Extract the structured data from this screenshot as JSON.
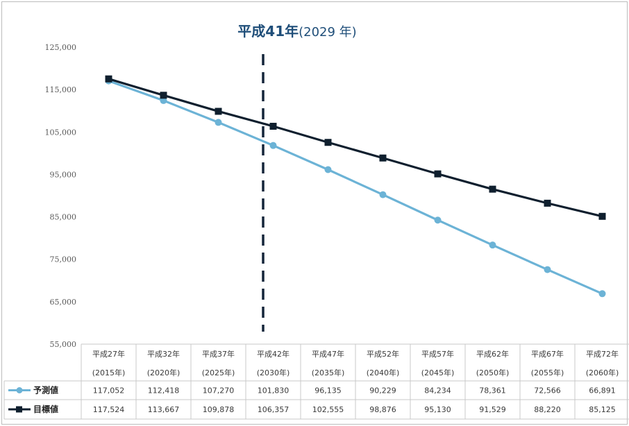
{
  "chart_data": {
    "type": "line",
    "categories": [
      {
        "era": "平成27年",
        "year": "(2015年)"
      },
      {
        "era": "平成32年",
        "year": "(2020年)"
      },
      {
        "era": "平成37年",
        "year": "(2025年)"
      },
      {
        "era": "平成42年",
        "year": "(2030年)"
      },
      {
        "era": "平成47年",
        "year": "(2035年)"
      },
      {
        "era": "平成52年",
        "year": "(2040年)"
      },
      {
        "era": "平成57年",
        "year": "(2045年)"
      },
      {
        "era": "平成62年",
        "year": "(2050年)"
      },
      {
        "era": "平成67年",
        "year": "(2055年)"
      },
      {
        "era": "平成72年",
        "year": "(2060年)"
      }
    ],
    "series": [
      {
        "name": "予測値",
        "color": "#6cb3d6",
        "marker": "circle",
        "values": [
          117052,
          112418,
          107270,
          101830,
          96135,
          90229,
          84234,
          78361,
          72566,
          66891
        ],
        "labels": [
          "117,052",
          "112,418",
          "107,270",
          "101,830",
          "96,135",
          "90,229",
          "84,234",
          "78,361",
          "72,566",
          "66,891"
        ]
      },
      {
        "name": "目標値",
        "color": "#0f1f2e",
        "marker": "square",
        "values": [
          117524,
          113667,
          109878,
          106357,
          102555,
          98876,
          95130,
          91529,
          88220,
          85125
        ],
        "labels": [
          "117,524",
          "113,667",
          "109,878",
          "106,357",
          "102,555",
          "98,876",
          "95,130",
          "91,529",
          "88,220",
          "85,125"
        ]
      }
    ],
    "ylim": [
      55000,
      125000
    ],
    "yticks": [
      55000,
      65000,
      75000,
      85000,
      95000,
      105000,
      115000,
      125000
    ],
    "ytick_labels": [
      "55,000",
      "65,000",
      "75,000",
      "85,000",
      "95,000",
      "105,000",
      "115,000",
      "125,000"
    ],
    "grid": false,
    "legend": "bottom-left data table",
    "annotation": {
      "main": "平成41年",
      "sub": "(2029 年)",
      "x_position": "between 平成37年 and 平成42年, near 平成42年",
      "line_style": "dashed",
      "line_color": "#14253a"
    }
  }
}
